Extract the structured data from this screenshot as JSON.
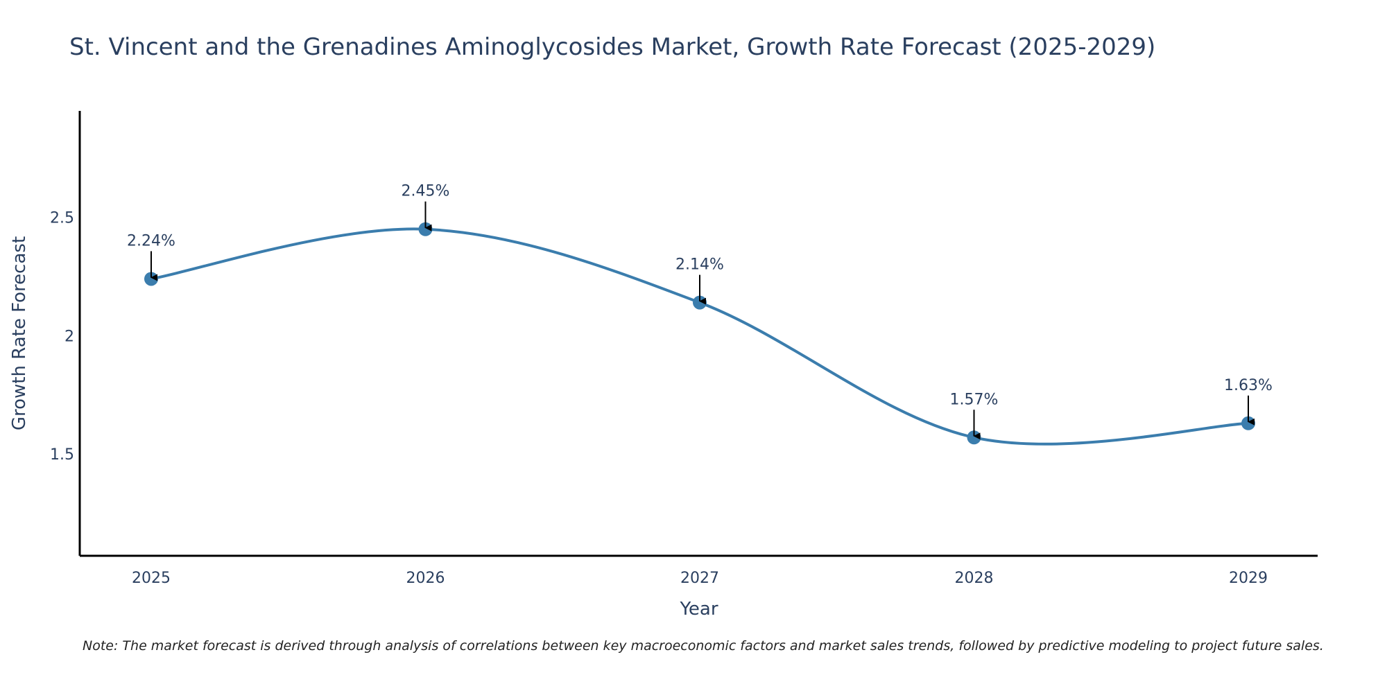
{
  "colors": {
    "line": "#3b7dad",
    "marker": "#3b7dad",
    "axis": "#000000",
    "arrow": "#000000",
    "text": "#2a3f5f"
  },
  "chart_data": {
    "type": "line",
    "title": "St. Vincent and the Grenadines Aminoglycosides Market, Growth Rate Forecast (2025-2029)",
    "xlabel": "Year",
    "ylabel": "Growth Rate Forecast",
    "categories": [
      "2025",
      "2026",
      "2027",
      "2028",
      "2029"
    ],
    "values": [
      2.24,
      2.45,
      2.14,
      1.57,
      1.63
    ],
    "data_labels": [
      "2.24%",
      "2.45%",
      "2.14%",
      "1.57%",
      "1.63%"
    ],
    "y_ticks": [
      1.5,
      2,
      2.5
    ],
    "y_tick_labels": [
      "1.5",
      "2",
      "2.5"
    ],
    "ylim": [
      1.07,
      2.95
    ],
    "grid": false,
    "line_shape": "spline",
    "note": "Note: The market forecast is derived through analysis of correlations between key macroeconomic factors and market sales trends, followed by predictive modeling to project future sales."
  }
}
